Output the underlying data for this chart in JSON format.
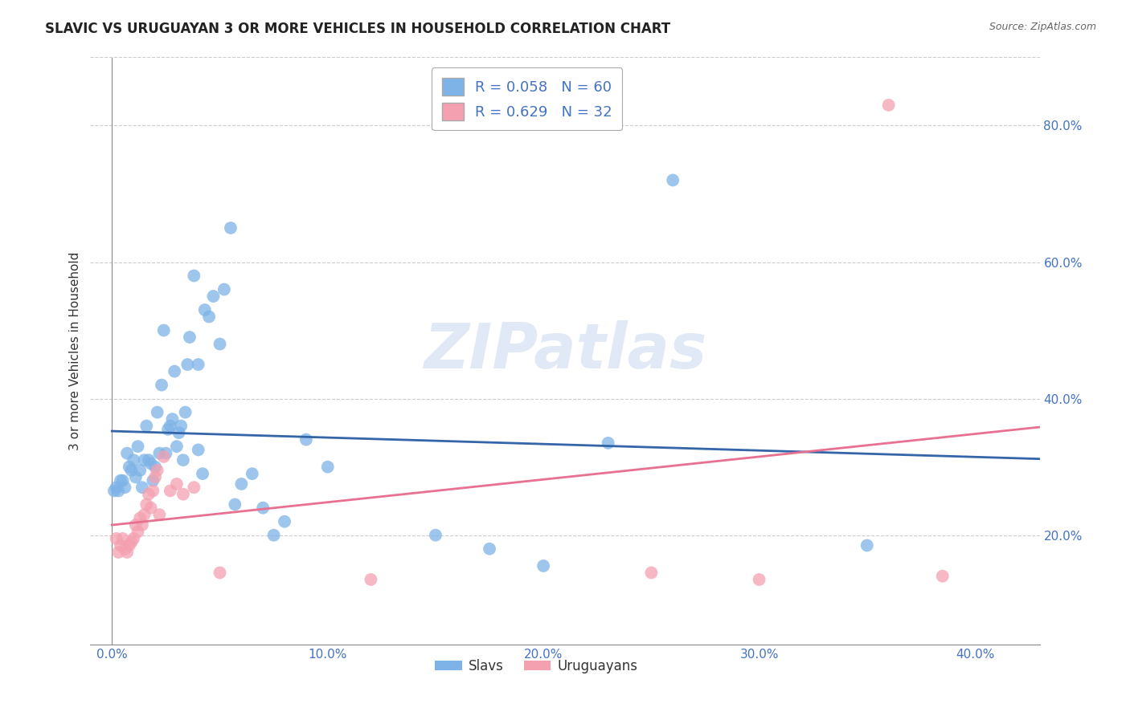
{
  "title": "SLAVIC VS URUGUAYAN 3 OR MORE VEHICLES IN HOUSEHOLD CORRELATION CHART",
  "source": "Source: ZipAtlas.com",
  "ylabel": "3 or more Vehicles in Household",
  "x_ticklabels": [
    "0.0%",
    "10.0%",
    "20.0%",
    "30.0%",
    "40.0%"
  ],
  "y_ticklabels": [
    "20.0%",
    "40.0%",
    "60.0%",
    "80.0%"
  ],
  "x_ticks": [
    0.0,
    0.1,
    0.2,
    0.3,
    0.4
  ],
  "y_ticks": [
    0.2,
    0.4,
    0.6,
    0.8
  ],
  "xlim": [
    -0.01,
    0.43
  ],
  "ylim": [
    0.04,
    0.9
  ],
  "slavic_R": 0.058,
  "slavic_N": 60,
  "uruguayan_R": 0.629,
  "uruguayan_N": 32,
  "legend_labels": [
    "Slavs",
    "Uruguayans"
  ],
  "slavic_color": "#7EB3E8",
  "uruguayan_color": "#F4A0B0",
  "slavic_line_color": "#3465A8",
  "uruguayan_line_color": "#E87090",
  "background_color": "#ffffff",
  "watermark": "ZIPatlas",
  "grid_color": "#cccccc",
  "slavic_points": [
    [
      0.001,
      0.265
    ],
    [
      0.002,
      0.27
    ],
    [
      0.003,
      0.265
    ],
    [
      0.004,
      0.28
    ],
    [
      0.005,
      0.28
    ],
    [
      0.006,
      0.27
    ],
    [
      0.007,
      0.32
    ],
    [
      0.008,
      0.3
    ],
    [
      0.009,
      0.295
    ],
    [
      0.01,
      0.31
    ],
    [
      0.011,
      0.285
    ],
    [
      0.012,
      0.33
    ],
    [
      0.013,
      0.295
    ],
    [
      0.014,
      0.27
    ],
    [
      0.015,
      0.31
    ],
    [
      0.016,
      0.36
    ],
    [
      0.017,
      0.31
    ],
    [
      0.018,
      0.305
    ],
    [
      0.019,
      0.28
    ],
    [
      0.02,
      0.3
    ],
    [
      0.021,
      0.38
    ],
    [
      0.022,
      0.32
    ],
    [
      0.023,
      0.42
    ],
    [
      0.024,
      0.5
    ],
    [
      0.025,
      0.32
    ],
    [
      0.026,
      0.355
    ],
    [
      0.027,
      0.36
    ],
    [
      0.028,
      0.37
    ],
    [
      0.029,
      0.44
    ],
    [
      0.03,
      0.33
    ],
    [
      0.031,
      0.35
    ],
    [
      0.032,
      0.36
    ],
    [
      0.033,
      0.31
    ],
    [
      0.034,
      0.38
    ],
    [
      0.035,
      0.45
    ],
    [
      0.036,
      0.49
    ],
    [
      0.038,
      0.58
    ],
    [
      0.04,
      0.325
    ],
    [
      0.04,
      0.45
    ],
    [
      0.042,
      0.29
    ],
    [
      0.043,
      0.53
    ],
    [
      0.045,
      0.52
    ],
    [
      0.047,
      0.55
    ],
    [
      0.05,
      0.48
    ],
    [
      0.052,
      0.56
    ],
    [
      0.055,
      0.65
    ],
    [
      0.057,
      0.245
    ],
    [
      0.06,
      0.275
    ],
    [
      0.065,
      0.29
    ],
    [
      0.07,
      0.24
    ],
    [
      0.075,
      0.2
    ],
    [
      0.08,
      0.22
    ],
    [
      0.09,
      0.34
    ],
    [
      0.1,
      0.3
    ],
    [
      0.15,
      0.2
    ],
    [
      0.175,
      0.18
    ],
    [
      0.2,
      0.155
    ],
    [
      0.23,
      0.335
    ],
    [
      0.26,
      0.72
    ],
    [
      0.35,
      0.185
    ]
  ],
  "uruguayan_points": [
    [
      0.002,
      0.195
    ],
    [
      0.003,
      0.175
    ],
    [
      0.004,
      0.185
    ],
    [
      0.005,
      0.195
    ],
    [
      0.006,
      0.18
    ],
    [
      0.007,
      0.175
    ],
    [
      0.008,
      0.185
    ],
    [
      0.009,
      0.19
    ],
    [
      0.01,
      0.195
    ],
    [
      0.011,
      0.215
    ],
    [
      0.012,
      0.205
    ],
    [
      0.013,
      0.225
    ],
    [
      0.014,
      0.215
    ],
    [
      0.015,
      0.23
    ],
    [
      0.016,
      0.245
    ],
    [
      0.017,
      0.26
    ],
    [
      0.018,
      0.24
    ],
    [
      0.019,
      0.265
    ],
    [
      0.02,
      0.285
    ],
    [
      0.021,
      0.295
    ],
    [
      0.022,
      0.23
    ],
    [
      0.024,
      0.315
    ],
    [
      0.027,
      0.265
    ],
    [
      0.03,
      0.275
    ],
    [
      0.033,
      0.26
    ],
    [
      0.038,
      0.27
    ],
    [
      0.05,
      0.145
    ],
    [
      0.12,
      0.135
    ],
    [
      0.25,
      0.145
    ],
    [
      0.3,
      0.135
    ],
    [
      0.36,
      0.83
    ],
    [
      0.385,
      0.14
    ]
  ]
}
